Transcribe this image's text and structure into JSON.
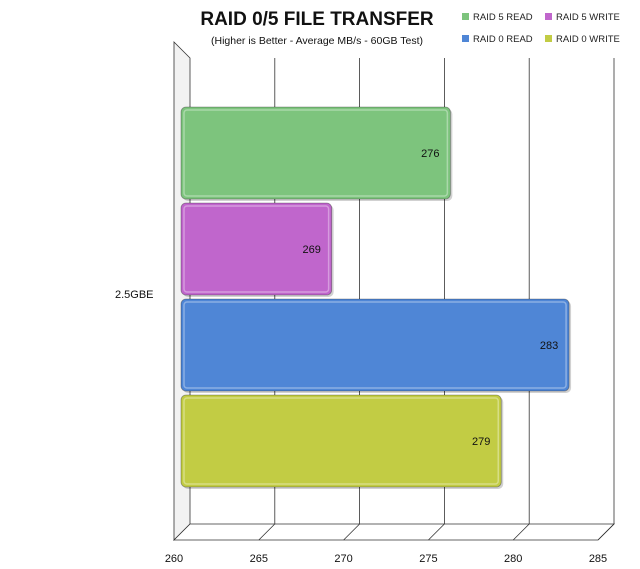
{
  "chart_data": {
    "type": "bar",
    "orientation": "horizontal",
    "title": "RAID 0/5 FILE TRANSFER",
    "subtitle": "(Higher is Better - Average MB/s - 60GB Test)",
    "categories": [
      "2.5GBE"
    ],
    "series": [
      {
        "name": "RAID 5 READ",
        "values": [
          276
        ],
        "color": "#7dc47d"
      },
      {
        "name": "RAID 5 WRITE",
        "values": [
          269
        ],
        "color": "#c066cc"
      },
      {
        "name": "RAID 0 READ",
        "values": [
          283
        ],
        "color": "#4f86d6"
      },
      {
        "name": "RAID 0 WRITE",
        "values": [
          279
        ],
        "color": "#c2cc44"
      }
    ],
    "value_labels": [
      "276",
      "269",
      "283",
      "279"
    ],
    "xlim": [
      260,
      285
    ],
    "x_ticks": [
      "260",
      "265",
      "270",
      "275",
      "280",
      "285"
    ],
    "xlabel": "",
    "ylabel": "",
    "grid": true,
    "legend_position": "top-right"
  }
}
